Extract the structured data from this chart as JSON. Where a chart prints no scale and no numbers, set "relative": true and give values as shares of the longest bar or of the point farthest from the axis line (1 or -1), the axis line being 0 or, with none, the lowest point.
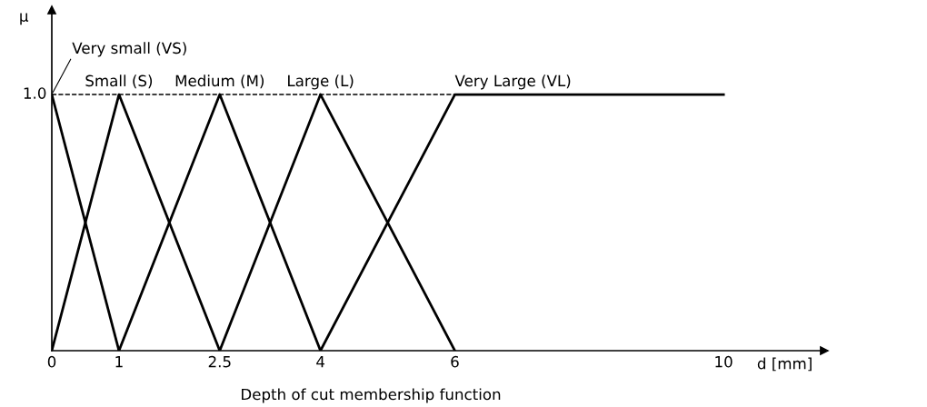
{
  "chart_data": {
    "type": "line",
    "title": "Depth of cut membership function",
    "xlabel": "d [mm]",
    "ylabel": "μ",
    "relative": true,
    "series": [
      {
        "name": "Very small (VS)",
        "color": "#000000",
        "x": [
          0,
          1
        ],
        "values": [
          1,
          0
        ]
      },
      {
        "name": "Small (S)",
        "color": "#000000",
        "x": [
          0,
          1,
          2.5
        ],
        "values": [
          0,
          1,
          0
        ]
      },
      {
        "name": "Medium (M)",
        "color": "#000000",
        "x": [
          1,
          2.5,
          4
        ],
        "values": [
          0,
          1,
          0
        ]
      },
      {
        "name": "Large (L)",
        "color": "#000000",
        "x": [
          2.5,
          4,
          6
        ],
        "values": [
          0,
          1,
          0
        ]
      },
      {
        "name": "Very Large (VL)",
        "color": "#000000",
        "x": [
          4,
          6,
          10
        ],
        "values": [
          0,
          1,
          1
        ]
      }
    ],
    "xlim": [
      0,
      11.5
    ],
    "xticks": [
      0,
      1,
      2.5,
      4,
      6,
      10
    ],
    "annotations": [
      {
        "text": "1.0",
        "x": 0,
        "y": 1
      }
    ],
    "ref_lines": [
      {
        "axis": "y",
        "value": 1,
        "label": null,
        "color": "#000000",
        "line_style": "dashed"
      }
    ],
    "grid": false,
    "legend": false,
    "marker": "none",
    "line_style": "solid"
  }
}
